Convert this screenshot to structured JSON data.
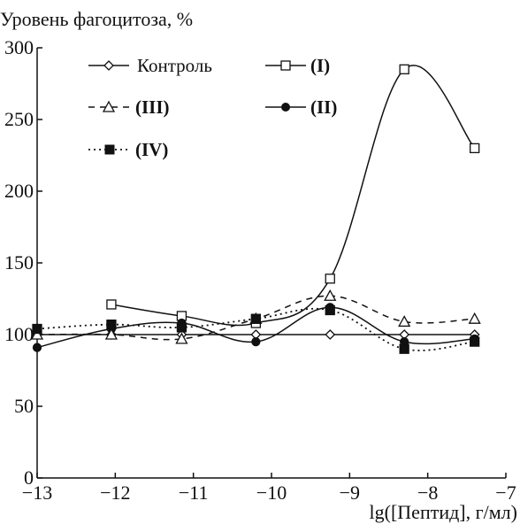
{
  "chart_data": {
    "type": "line",
    "ylabel": "Уровень фагоцитоза, %",
    "xlabel": "lg([Пептид], г/мл)",
    "xlim": [
      -13,
      -7
    ],
    "ylim": [
      0,
      300
    ],
    "x_ticks": [
      -13,
      -12,
      -11,
      -10,
      -9,
      -8,
      -7
    ],
    "x_tick_labels": [
      "−13",
      "−12",
      "−11",
      "−10",
      "−9",
      "−8",
      "−7"
    ],
    "y_ticks": [
      0,
      50,
      100,
      150,
      200,
      250,
      300
    ],
    "y_tick_labels": [
      "0",
      "50",
      "100",
      "150",
      "200",
      "250",
      "300"
    ],
    "grid": false,
    "legend_position": "top-left",
    "series": [
      {
        "name": "Контроль",
        "marker": "diamond-open",
        "line_style": "solid",
        "color": "#111111",
        "points": [
          [
            -13,
            100
          ],
          [
            -12.05,
            100
          ],
          [
            -11.15,
            100
          ],
          [
            -10.2,
            100
          ],
          [
            -9.25,
            100
          ],
          [
            -8.3,
            100
          ],
          [
            -7.4,
            100
          ]
        ]
      },
      {
        "name": "(I)",
        "marker": "square-open",
        "line_style": "solid",
        "color": "#111111",
        "points": [
          [
            -12.05,
            121
          ],
          [
            -11.15,
            113
          ],
          [
            -10.2,
            108
          ],
          [
            -9.25,
            139
          ],
          [
            -8.3,
            285
          ],
          [
            -7.4,
            230
          ]
        ]
      },
      {
        "name": "(II)",
        "marker": "circle-filled",
        "line_style": "solid",
        "color": "#111111",
        "points": [
          [
            -13,
            91
          ],
          [
            -12.05,
            104
          ],
          [
            -11.15,
            108
          ],
          [
            -10.2,
            95
          ],
          [
            -9.25,
            119
          ],
          [
            -8.3,
            95
          ],
          [
            -7.4,
            97
          ]
        ]
      },
      {
        "name": "(III)",
        "marker": "triangle-open",
        "line_style": "dashed",
        "color": "#111111",
        "points": [
          [
            -13,
            100
          ],
          [
            -12.05,
            100
          ],
          [
            -11.15,
            97
          ],
          [
            -10.2,
            111
          ],
          [
            -9.25,
            127
          ],
          [
            -8.3,
            109
          ],
          [
            -7.4,
            111
          ]
        ]
      },
      {
        "name": "(IV)",
        "marker": "square-filled",
        "line_style": "dotted",
        "color": "#111111",
        "points": [
          [
            -13,
            104
          ],
          [
            -12.05,
            107
          ],
          [
            -11.15,
            105
          ],
          [
            -10.2,
            111
          ],
          [
            -9.25,
            117
          ],
          [
            -8.3,
            90
          ],
          [
            -7.4,
            95
          ]
        ]
      }
    ]
  }
}
